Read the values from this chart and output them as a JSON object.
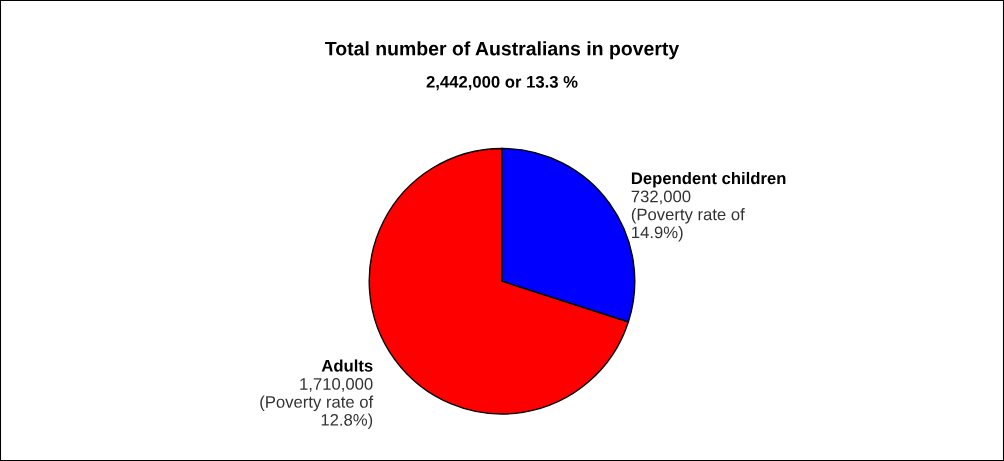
{
  "chart_data": {
    "type": "pie",
    "title": "Total number of Australians in poverty",
    "subtitle": "2,442,000 or 13.3 %",
    "categories": [
      "Dependent children",
      "Adults"
    ],
    "values": [
      732000,
      1710000
    ],
    "colors": [
      "#0000ff",
      "#ff0000"
    ],
    "value_labels": [
      "732,000\n(Poverty rate of\n14.9%)",
      "1,710,000\n(Poverty rate of\n12.8%)"
    ],
    "legend": false
  }
}
